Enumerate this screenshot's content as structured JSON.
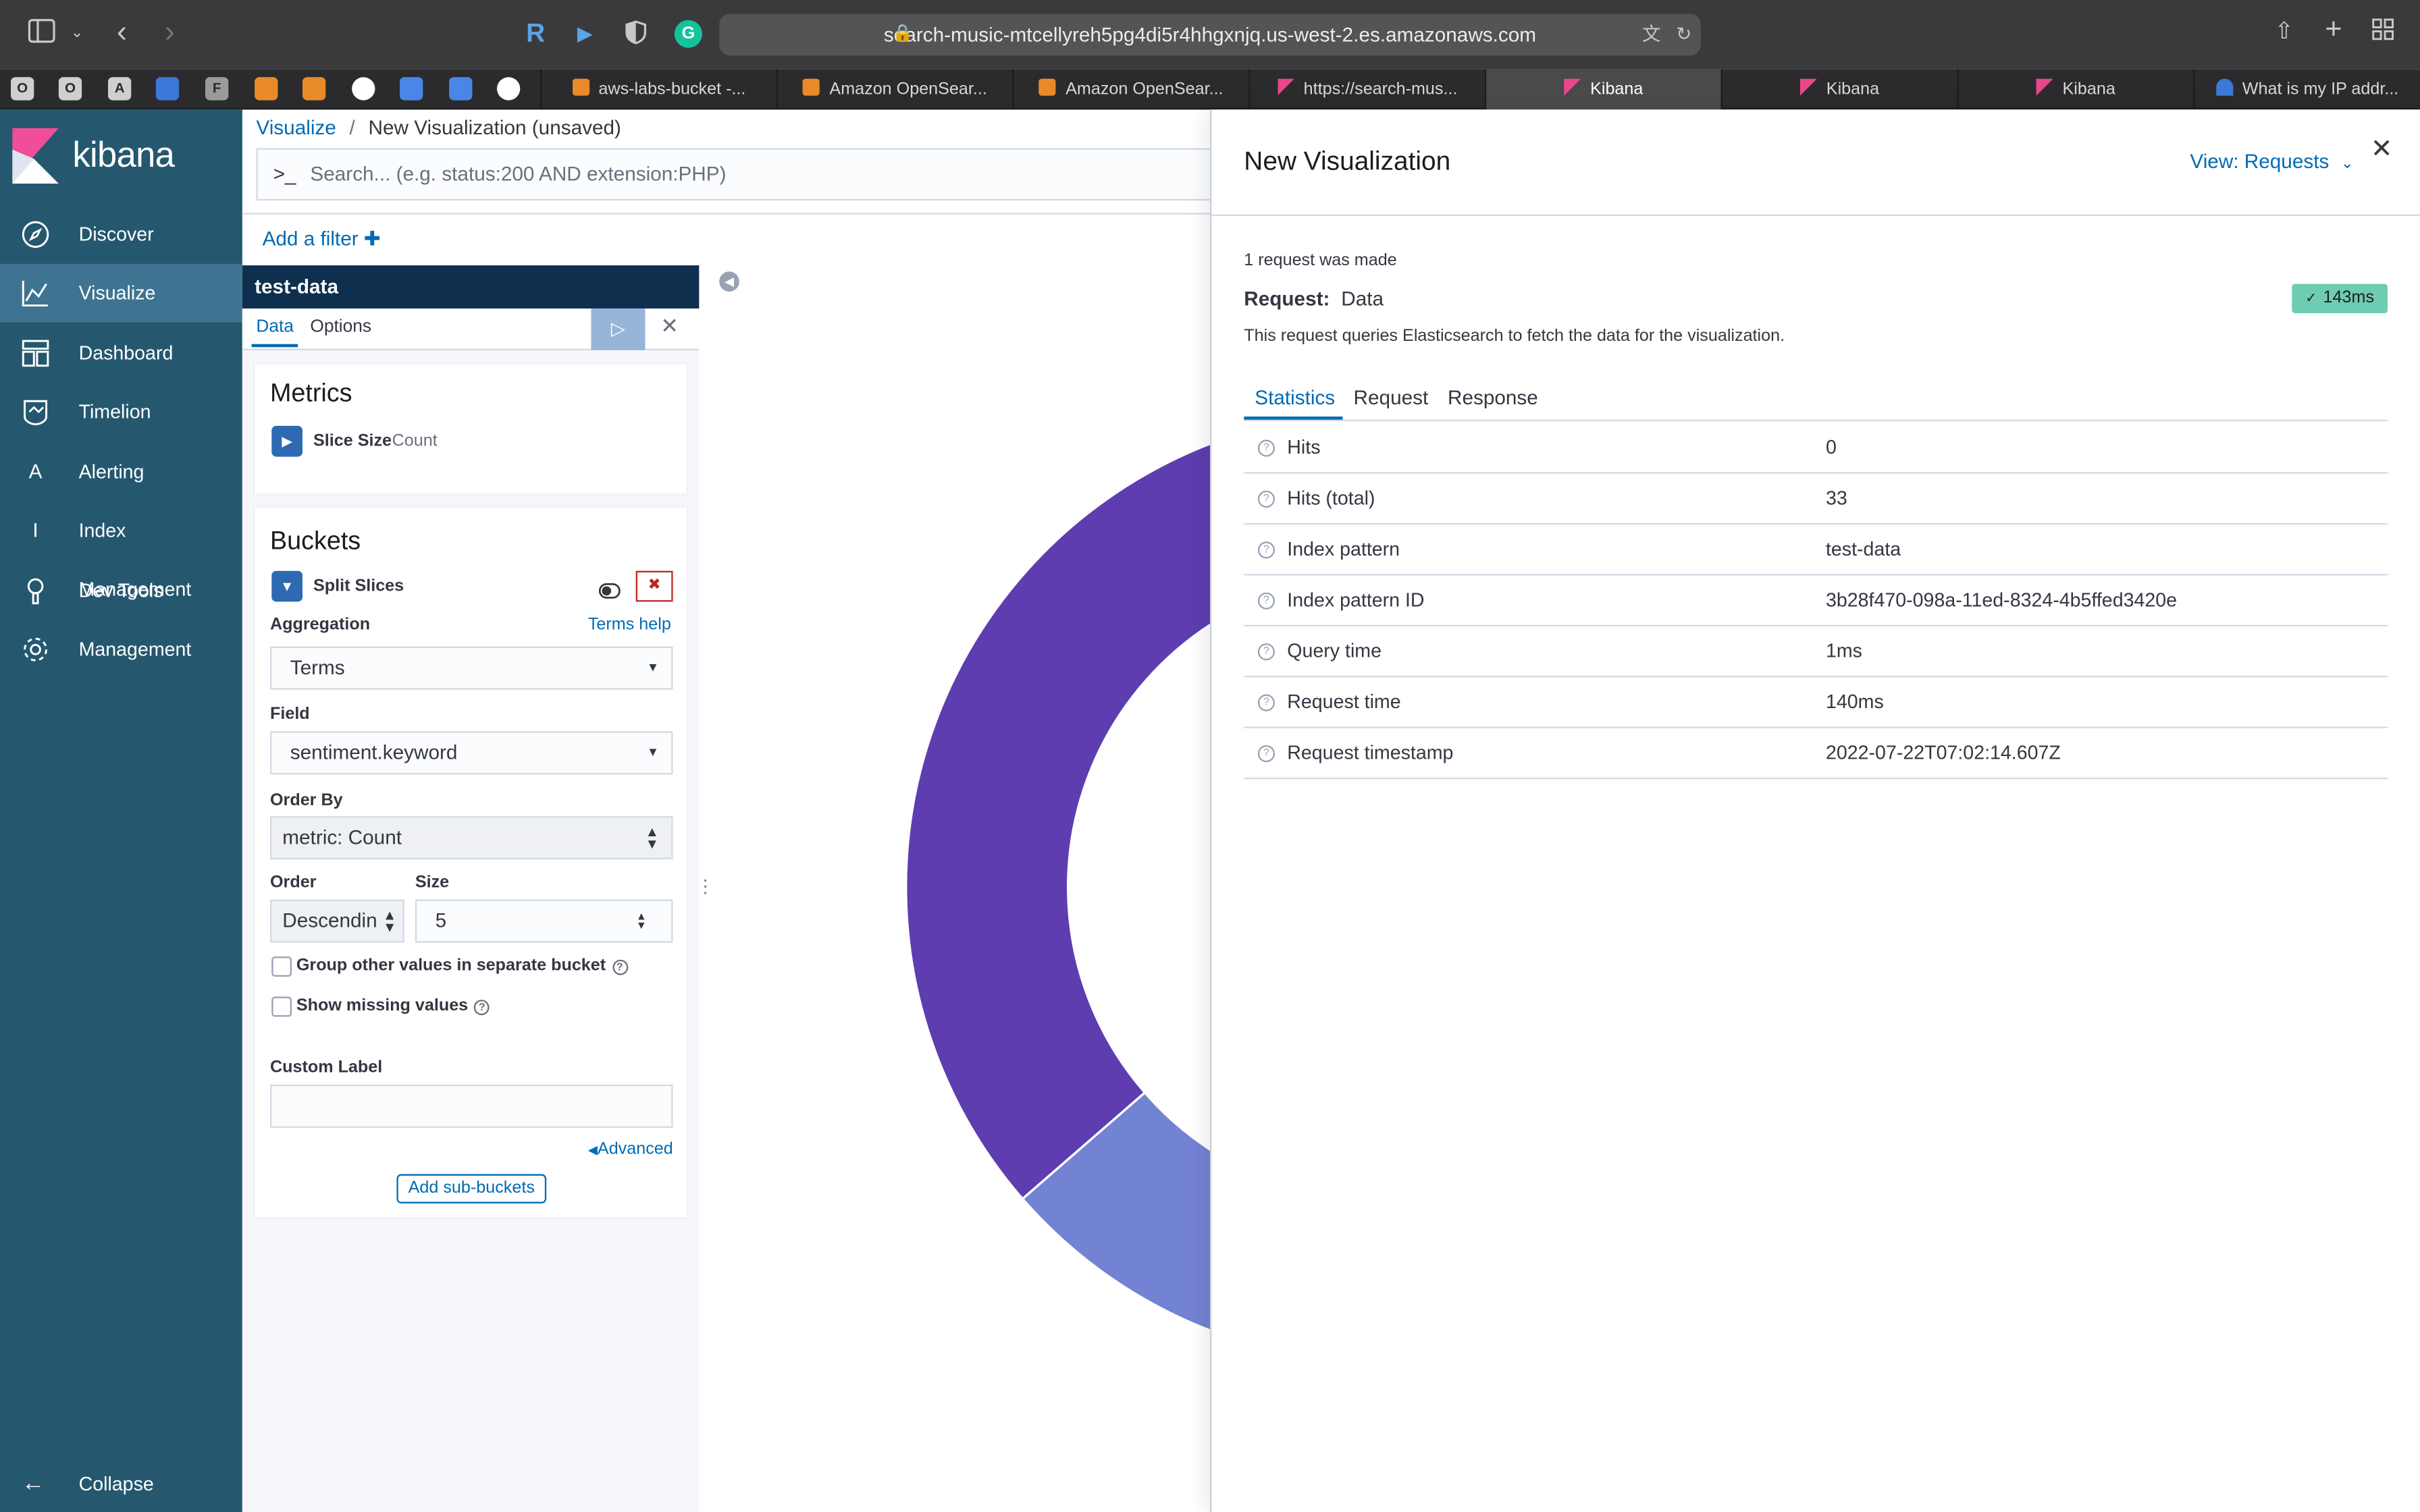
{
  "browser": {
    "url": "search-music-mtcellyreh5pg4di5r4hhgxnjq.us-west-2.es.amazonaws.com",
    "pinned_tabs": [
      "O",
      "O",
      "A",
      "",
      "F",
      "",
      "",
      "",
      "",
      "",
      ""
    ],
    "tabs": [
      {
        "label": "aws-labs-bucket -...",
        "active": false
      },
      {
        "label": "Amazon OpenSear...",
        "active": false
      },
      {
        "label": "Amazon OpenSear...",
        "active": false
      },
      {
        "label": "https://search-mus...",
        "active": false
      },
      {
        "label": "Kibana",
        "active": true
      },
      {
        "label": "Kibana",
        "active": false
      },
      {
        "label": "Kibana",
        "active": false
      },
      {
        "label": "What is my IP addr...",
        "active": false
      }
    ]
  },
  "kibana": {
    "logo_text": "kibana",
    "nav": [
      {
        "label": "Discover",
        "icon": "compass-icon",
        "active": false
      },
      {
        "label": "Visualize",
        "icon": "visualize-icon",
        "active": true
      },
      {
        "label": "Dashboard",
        "icon": "dashboard-icon",
        "active": false
      },
      {
        "label": "Timelion",
        "icon": "timelion-icon",
        "active": false
      },
      {
        "label": "Alerting",
        "icon": "alerting-icon",
        "active": false
      },
      {
        "label": "Index Management",
        "icon": "index-management-icon",
        "active": false
      },
      {
        "label": "Dev Tools",
        "icon": "wrench-icon",
        "active": false
      },
      {
        "label": "Management",
        "icon": "gear-icon",
        "active": false
      }
    ],
    "collapse_label": "Collapse"
  },
  "breadcrumb": {
    "root": "Visualize",
    "separator": "/",
    "current": "New Visualization (unsaved)"
  },
  "search": {
    "prompt": ">_",
    "placeholder": "Search... (e.g. status:200 AND extension:PHP)"
  },
  "filter": {
    "add_label": "Add a filter"
  },
  "editor": {
    "index": "test-data",
    "tabs": [
      "Data",
      "Options"
    ],
    "metrics": {
      "title": "Metrics",
      "item_label": "Slice Size",
      "item_value": "Count"
    },
    "buckets": {
      "title": "Buckets",
      "item_label": "Split Slices",
      "aggregation_label": "Aggregation",
      "terms_help": "Terms help",
      "aggregation_value": "Terms",
      "field_label": "Field",
      "field_value": "sentiment.keyword",
      "order_by_label": "Order By",
      "order_by_value": "metric: Count",
      "order_label": "Order",
      "order_value": "Descendin",
      "size_label": "Size",
      "size_value": "5",
      "group_other_label": "Group other values in separate bucket",
      "show_missing_label": "Show missing values",
      "custom_label": "Custom Label",
      "custom_value": "",
      "advanced": "Advanced",
      "add_sub_buckets": "Add sub-buckets"
    }
  },
  "chart_colors": {
    "slice_primary": "#5e3db0",
    "slice_secondary": "#7383d3"
  },
  "flyout": {
    "title": "New Visualization",
    "view_label": "View: Requests",
    "requests_made": "1 request was made",
    "request_label": "Request:",
    "request_name": "Data",
    "badge": "143ms",
    "description": "This request queries Elasticsearch to fetch the data for the visualization.",
    "tabs": [
      "Statistics",
      "Request",
      "Response"
    ],
    "stats": [
      {
        "key": "Hits",
        "value": "0"
      },
      {
        "key": "Hits (total)",
        "value": "33"
      },
      {
        "key": "Index pattern",
        "value": "test-data"
      },
      {
        "key": "Index pattern ID",
        "value": "3b28f470-098a-11ed-8324-4b5ffed3420e"
      },
      {
        "key": "Query time",
        "value": "1ms"
      },
      {
        "key": "Request time",
        "value": "140ms"
      },
      {
        "key": "Request timestamp",
        "value": "2022-07-22T07:02:14.607Z"
      }
    ]
  }
}
